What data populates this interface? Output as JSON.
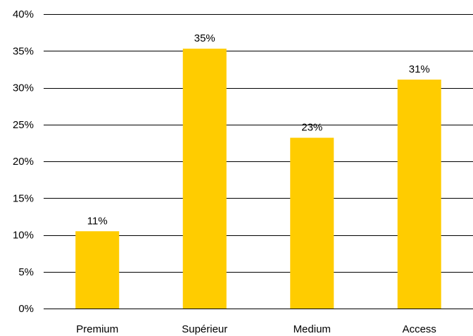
{
  "chart_data": {
    "type": "bar",
    "categories": [
      "Premium",
      "Supérieur",
      "Medium",
      "Access"
    ],
    "values": [
      10.5,
      35.3,
      23.2,
      31.1
    ],
    "data_labels": [
      "11%",
      "35%",
      "23%",
      "31%"
    ],
    "y_ticks": [
      0,
      5,
      10,
      15,
      20,
      25,
      30,
      35,
      40
    ],
    "y_tick_labels": [
      "0%",
      "5%",
      "10%",
      "15%",
      "20%",
      "25%",
      "30%",
      "35%",
      "40%"
    ],
    "ylim": [
      0,
      40
    ],
    "grid": true,
    "legend": "none",
    "colors": {
      "bar": "#FFCC00",
      "grid": "#000000"
    }
  }
}
